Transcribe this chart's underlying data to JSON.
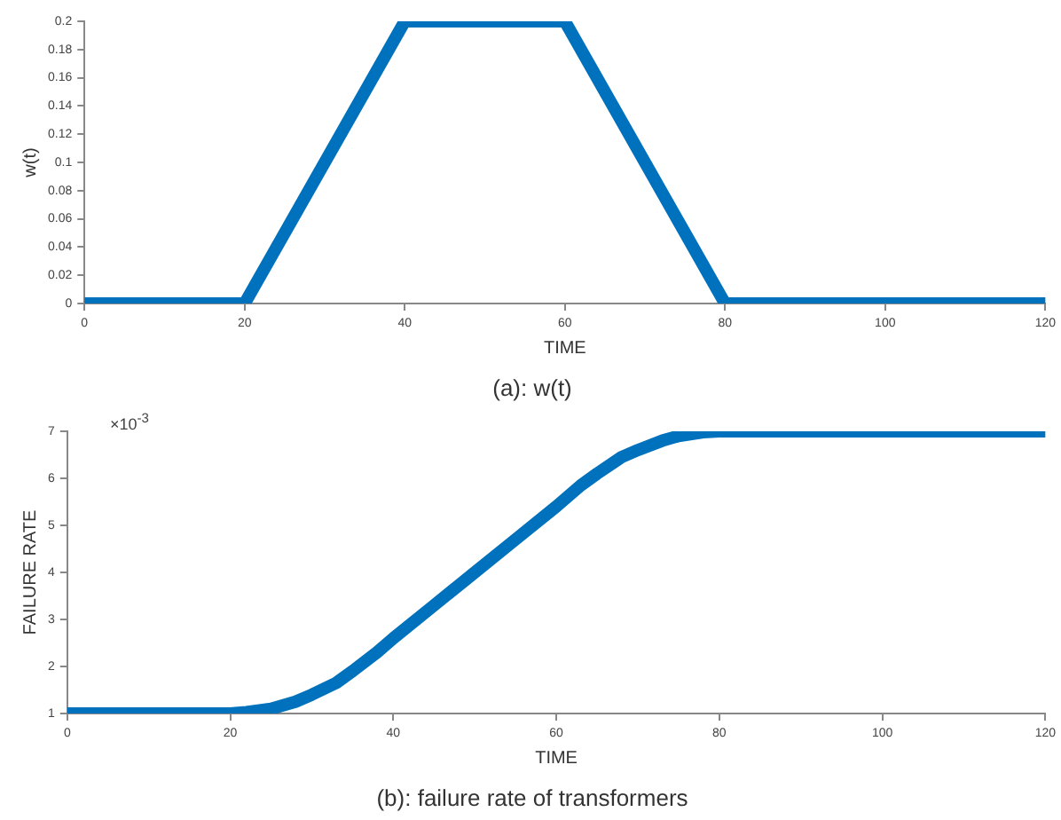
{
  "chart_data": [
    {
      "type": "line",
      "title": "(a): w(t)",
      "xlabel": "TIME",
      "ylabel": "w(t)",
      "series": [
        {
          "color": "#0072bd",
          "x": [
            0,
            20,
            40,
            60,
            80,
            120
          ],
          "values": [
            0,
            0,
            0.2,
            0.2,
            0,
            0
          ]
        }
      ],
      "xlim": [
        0,
        120
      ],
      "xticks": [
        0,
        20,
        40,
        60,
        80,
        100,
        120
      ],
      "ylim": [
        0,
        0.2
      ],
      "yticks": [
        0,
        0.02,
        0.04,
        0.06,
        0.08,
        0.1,
        0.12,
        0.14,
        0.16,
        0.18,
        0.2
      ],
      "grid": false,
      "legend": false,
      "marker": "none",
      "line_style": "solid"
    },
    {
      "type": "line",
      "title": "(b): failure rate of transformers",
      "xlabel": "TIME",
      "ylabel": "FAILURE RATE",
      "annotations": [
        "×10$^{-3}$"
      ],
      "series": [
        {
          "color": "#0072bd",
          "x": [
            0,
            20,
            22,
            25,
            28,
            30,
            33,
            35,
            38,
            40,
            45,
            50,
            55,
            60,
            63,
            65,
            68,
            70,
            73,
            75,
            78,
            80,
            120
          ],
          "values": [
            1,
            1,
            1.03,
            1.1,
            1.25,
            1.4,
            1.65,
            1.9,
            2.3,
            2.6,
            3.3,
            4,
            4.7,
            5.4,
            5.85,
            6.1,
            6.45,
            6.6,
            6.8,
            6.9,
            6.98,
            7,
            7
          ]
        }
      ],
      "xlim": [
        0,
        120
      ],
      "xticks": [
        0,
        20,
        40,
        60,
        80,
        100,
        120
      ],
      "ylim": [
        1,
        7
      ],
      "yticks": [
        1,
        2,
        3,
        4,
        5,
        6,
        7
      ],
      "grid": false,
      "legend": false,
      "marker": "none",
      "line_style": "solid"
    }
  ]
}
